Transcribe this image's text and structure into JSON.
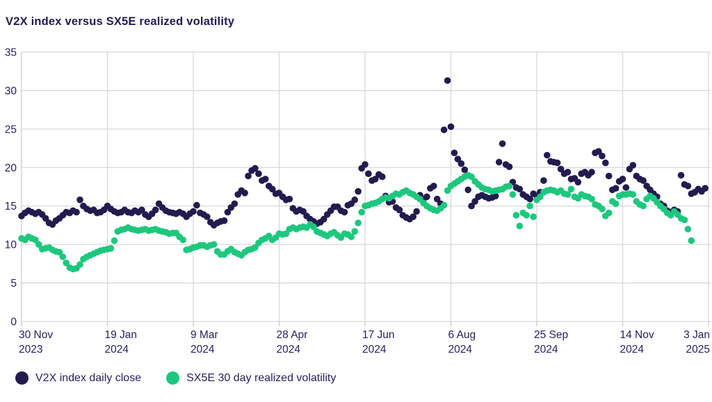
{
  "title": "V2X index versus SX5E realized volatility",
  "legend": {
    "items": [
      {
        "label": "V2X index daily close",
        "color": "#221b4e"
      },
      {
        "label": "SX5E 30 day realized volatility",
        "color": "#1ec77e"
      }
    ]
  },
  "colors": {
    "grid": "#d8d8d8",
    "tick": "#c9c9c9",
    "axis_text": "#262160",
    "background": "#ffffff",
    "v2x": "#221b4e",
    "sx5e": "#1ec77e"
  },
  "chart_data": {
    "type": "scatter",
    "title": "V2X index versus SX5E realized volatility",
    "grid": true,
    "legend_position": "bottom-left",
    "y_axis": {
      "min": 0,
      "max": 35,
      "tick_step": 5,
      "ticks": [
        0,
        5,
        10,
        15,
        20,
        25,
        30,
        35
      ]
    },
    "x_axis": {
      "total_days": 400,
      "ticks": [
        {
          "label": "30 Nov",
          "year": "2023",
          "day": 0
        },
        {
          "label": "19 Jan",
          "year": "2024",
          "day": 50
        },
        {
          "label": "9 Mar",
          "year": "2024",
          "day": 100
        },
        {
          "label": "28 Apr",
          "year": "2024",
          "day": 150
        },
        {
          "label": "17 Jun",
          "year": "2024",
          "day": 200
        },
        {
          "label": "6 Aug",
          "year": "2024",
          "day": 250
        },
        {
          "label": "25 Sep",
          "year": "2024",
          "day": 300
        },
        {
          "label": "14 Nov",
          "year": "2024",
          "day": 350
        },
        {
          "label": "3 Jan",
          "year": "2025",
          "day": 400
        }
      ]
    },
    "series": [
      {
        "name": "V2X index daily close",
        "color": "#221b4e",
        "start_day": 0,
        "step_days": 2,
        "values": [
          13.7,
          14.1,
          14.4,
          14.2,
          14.0,
          14.2,
          13.9,
          13.4,
          12.8,
          12.6,
          13.1,
          13.4,
          13.8,
          14.2,
          14.1,
          14.4,
          14.2,
          15.8,
          15.0,
          14.6,
          14.4,
          14.5,
          14.1,
          14.2,
          14.5,
          15.0,
          14.6,
          14.3,
          14.1,
          14.2,
          14.5,
          14.2,
          14.1,
          14.4,
          14.2,
          14.5,
          13.9,
          13.6,
          14.0,
          14.5,
          15.3,
          14.8,
          14.4,
          14.2,
          14.1,
          14.0,
          14.2,
          14.0,
          13.6,
          14.0,
          14.3,
          15.1,
          14.1,
          13.9,
          13.6,
          12.9,
          12.5,
          12.8,
          13.0,
          13.1,
          14.2,
          14.8,
          15.3,
          16.5,
          17.0,
          16.7,
          18.9,
          19.6,
          19.9,
          19.2,
          18.3,
          18.5,
          17.6,
          17.2,
          16.6,
          16.7,
          16.2,
          15.8,
          15.9,
          14.7,
          14.3,
          14.5,
          14.3,
          13.7,
          13.3,
          13.0,
          12.7,
          12.9,
          13.3,
          13.9,
          14.4,
          14.9,
          14.9,
          14.4,
          14.2,
          15.1,
          15.3,
          15.8,
          16.9,
          19.9,
          20.4,
          19.2,
          18.3,
          18.5,
          19.1,
          18.8,
          16.3,
          15.5,
          15.6,
          14.8,
          14.5,
          13.8,
          13.5,
          13.3,
          13.6,
          14.3,
          16.4,
          15.9,
          16.2,
          17.3,
          17.6,
          15.9,
          15.3,
          24.9,
          31.3,
          25.3,
          21.9,
          21.1,
          20.5,
          19.7,
          17.1,
          15.0,
          15.6,
          16.2,
          16.4,
          16.2,
          16.0,
          16.1,
          16.3,
          20.7,
          23.1,
          20.4,
          20.1,
          18.1,
          17.4,
          17.2,
          16.5,
          16.2,
          15.9,
          16.6,
          16.3,
          16.8,
          18.3,
          21.6,
          20.8,
          20.7,
          20.6,
          19.8,
          19.2,
          19.4,
          18.5,
          18.6,
          18.1,
          19.2,
          19.4,
          19.0,
          19.4,
          21.9,
          22.1,
          21.5,
          20.6,
          18.9,
          17.1,
          17.3,
          18.2,
          18.5,
          17.4,
          19.8,
          20.3,
          18.9,
          18.5,
          18.3,
          17.6,
          17.1,
          16.6,
          16.2,
          15.3,
          15.0,
          14.4,
          14.2,
          14.5,
          14.3,
          19.0,
          17.8,
          17.6,
          16.6,
          16.8,
          17.2,
          16.9,
          17.3
        ]
      },
      {
        "name": "SX5E 30 day realized volatility",
        "color": "#1ec77e",
        "start_day": 0,
        "step_days": 2,
        "values": [
          10.8,
          10.6,
          11.0,
          10.8,
          10.6,
          10.0,
          9.4,
          9.5,
          9.6,
          9.3,
          9.1,
          9.0,
          8.4,
          7.6,
          7.0,
          6.8,
          6.9,
          7.4,
          8.1,
          8.4,
          8.6,
          8.8,
          9.0,
          9.2,
          9.3,
          9.4,
          9.5,
          10.5,
          11.7,
          11.9,
          12.0,
          12.2,
          12.0,
          11.9,
          11.8,
          11.9,
          12.0,
          11.8,
          11.9,
          12.0,
          11.8,
          11.7,
          11.6,
          11.4,
          11.5,
          11.5,
          11.0,
          10.6,
          9.3,
          9.4,
          9.6,
          9.7,
          9.9,
          9.9,
          9.7,
          9.9,
          10.0,
          9.1,
          8.7,
          8.7,
          9.1,
          9.4,
          9.0,
          8.8,
          8.6,
          9.0,
          9.3,
          9.4,
          9.6,
          10.2,
          10.6,
          10.8,
          11.1,
          10.6,
          10.9,
          11.4,
          11.3,
          11.4,
          12.0,
          12.2,
          12.0,
          12.2,
          12.3,
          12.2,
          12.6,
          12.3,
          11.7,
          11.5,
          11.3,
          11.1,
          11.4,
          11.6,
          11.2,
          10.9,
          11.4,
          11.3,
          11.0,
          11.7,
          12.8,
          14.2,
          15.0,
          15.1,
          15.3,
          15.4,
          15.6,
          15.9,
          16.1,
          16.0,
          16.3,
          16.6,
          16.5,
          16.8,
          17.0,
          16.7,
          16.5,
          16.2,
          15.9,
          15.4,
          15.0,
          14.7,
          14.5,
          14.4,
          14.7,
          15.1,
          17.0,
          17.6,
          17.9,
          18.2,
          18.5,
          18.8,
          19.0,
          18.8,
          18.2,
          17.8,
          17.4,
          17.2,
          17.1,
          16.9,
          17.0,
          17.1,
          17.2,
          17.5,
          17.6,
          16.5,
          13.8,
          12.4,
          14.1,
          13.8,
          15.0,
          13.6,
          15.8,
          16.2,
          16.8,
          17.0,
          17.1,
          17.0,
          16.8,
          17.0,
          16.6,
          16.5,
          17.2,
          16.2,
          16.0,
          16.5,
          16.3,
          16.2,
          15.9,
          15.2,
          15.0,
          14.6,
          13.7,
          14.1,
          15.6,
          15.3,
          16.3,
          16.5,
          16.5,
          16.6,
          16.5,
          15.6,
          15.2,
          15.0,
          15.9,
          16.3,
          16.0,
          15.5,
          15.0,
          14.6,
          14.1,
          13.8,
          14.3,
          13.9,
          13.4,
          13.2,
          12.0,
          10.5
        ]
      }
    ]
  }
}
